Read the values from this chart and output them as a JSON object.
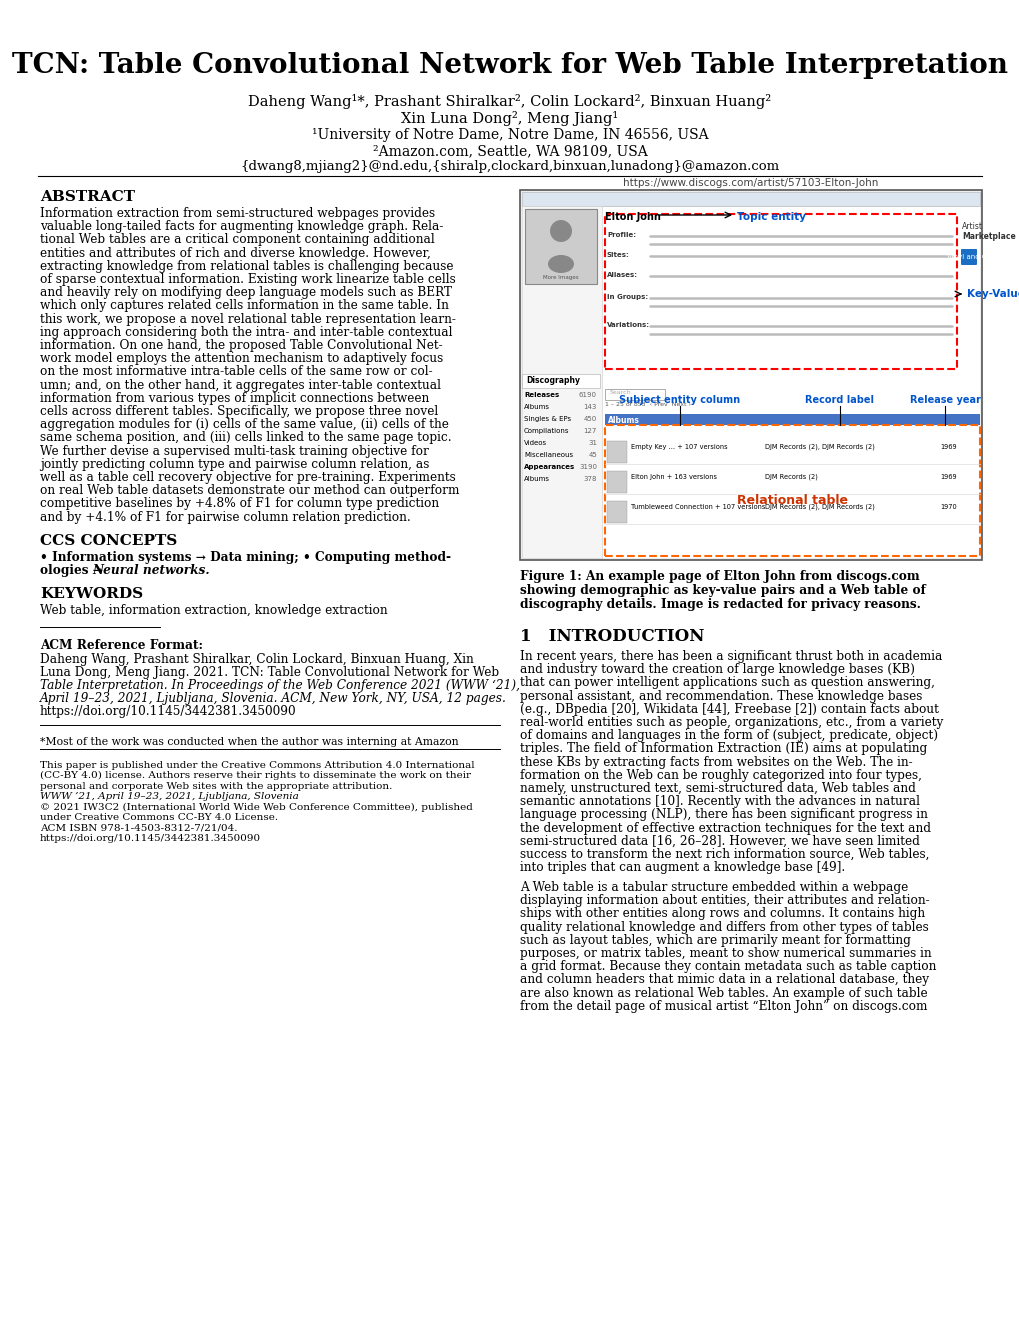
{
  "title": "TCN: Table Convolutional Network for Web Table Interpretation",
  "authors_line1": "Daheng Wang¹*, Prashant Shiralkar², Colin Lockard², Binxuan Huang²",
  "authors_line2": "Xin Luna Dong², Meng Jiang¹",
  "affil1": "¹University of Notre Dame, Notre Dame, IN 46556, USA",
  "affil2": "²Amazon.com, Seattle, WA 98109, USA",
  "email": "{dwang8,mjiang2}@nd.edu,{shiralp,clockard,binxuan,lunadong}@amazon.com",
  "abstract_title": "ABSTRACT",
  "ccs_title": "CCS CONCEPTS",
  "keywords_title": "KEYWORDS",
  "keywords_text": "Web table, information extraction, knowledge extraction",
  "acm_title": "ACM Reference Format:",
  "footnote1": "*Most of the work was conducted when the author was interning at Amazon",
  "intro_title": "1   INTRODUCTION",
  "fig_url": "https://www.discogs.com/artist/57103-Elton-John",
  "fig_caption_bold": "Figure 1: An example page of Elton John from discogs.com\nshowing demographic as key-value pairs and a Web table of\ndiscography details. Image is redacted for privacy reasons.",
  "bg_color": "#ffffff"
}
